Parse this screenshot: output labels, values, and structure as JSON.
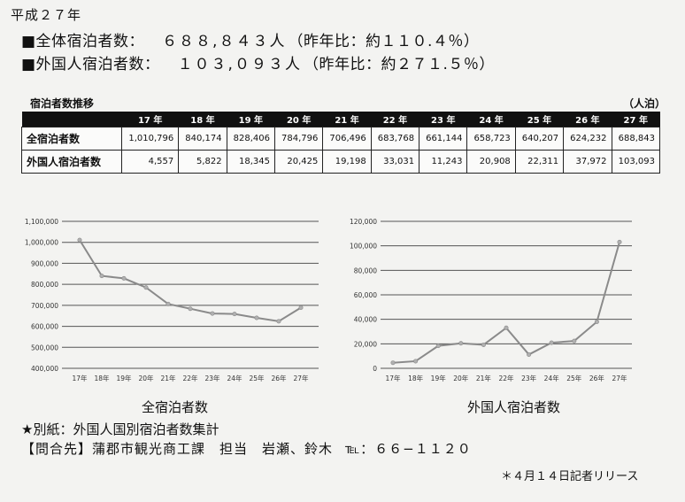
{
  "heading": "平成２７年",
  "stats": [
    {
      "label": "■全体宿泊者数：",
      "value": "６８８,８４３人",
      "ratio": "（昨年比：約１１０.４％）"
    },
    {
      "label": "■外国人宿泊者数：",
      "value": "１０３,０９３人",
      "ratio": "（昨年比：約２７１.５％）"
    }
  ],
  "table": {
    "title": "宿泊者数推移",
    "unit": "（人泊）",
    "years": [
      "17 年",
      "18 年",
      "19 年",
      "20 年",
      "21 年",
      "22 年",
      "23 年",
      "24 年",
      "25 年",
      "26 年",
      "27 年"
    ],
    "rows": [
      {
        "label": "全宿泊者数",
        "values": [
          "1,010,796",
          "840,174",
          "828,406",
          "784,796",
          "706,496",
          "683,768",
          "661,144",
          "658,723",
          "640,207",
          "624,232",
          "688,843"
        ]
      },
      {
        "label": "外国人宿泊者数",
        "values": [
          "4,557",
          "5,822",
          "18,345",
          "20,425",
          "19,198",
          "33,031",
          "11,243",
          "20,908",
          "22,311",
          "37,972",
          "103,093"
        ]
      }
    ]
  },
  "chart_data": [
    {
      "type": "line",
      "title": "全宿泊者数",
      "categories": [
        "17年",
        "18年",
        "19年",
        "20年",
        "21年",
        "22年",
        "23年",
        "24年",
        "25年",
        "26年",
        "27年"
      ],
      "values": [
        1010796,
        840174,
        828406,
        784796,
        706496,
        683768,
        661144,
        658723,
        640207,
        624232,
        688843
      ],
      "ylim": [
        400000,
        1100000
      ],
      "yticks": [
        "400,000",
        "500,000",
        "600,000",
        "700,000",
        "800,000",
        "900,000",
        "1,000,000",
        "1,100,000"
      ],
      "grid": true,
      "line_color": "#8a8a8a"
    },
    {
      "type": "line",
      "title": "外国人宿泊者数",
      "categories": [
        "17年",
        "18年",
        "19年",
        "20年",
        "21年",
        "22年",
        "23年",
        "24年",
        "25年",
        "26年",
        "27年"
      ],
      "values": [
        4557,
        5822,
        18345,
        20425,
        19198,
        33031,
        11243,
        20908,
        22311,
        37972,
        103093
      ],
      "ylim": [
        0,
        120000
      ],
      "yticks": [
        "0",
        "20,000",
        "40,000",
        "60,000",
        "80,000",
        "100,000",
        "120,000"
      ],
      "grid": true,
      "line_color": "#8a8a8a"
    }
  ],
  "note": "★別紙：外国人国別宿泊者数集計",
  "contact": {
    "text": "【問合先】蒲郡市観光商工課　担当　岩瀬、鈴木",
    "tel": "℡：６６−１１２０"
  },
  "release": "＊４月１４日記者リリース"
}
